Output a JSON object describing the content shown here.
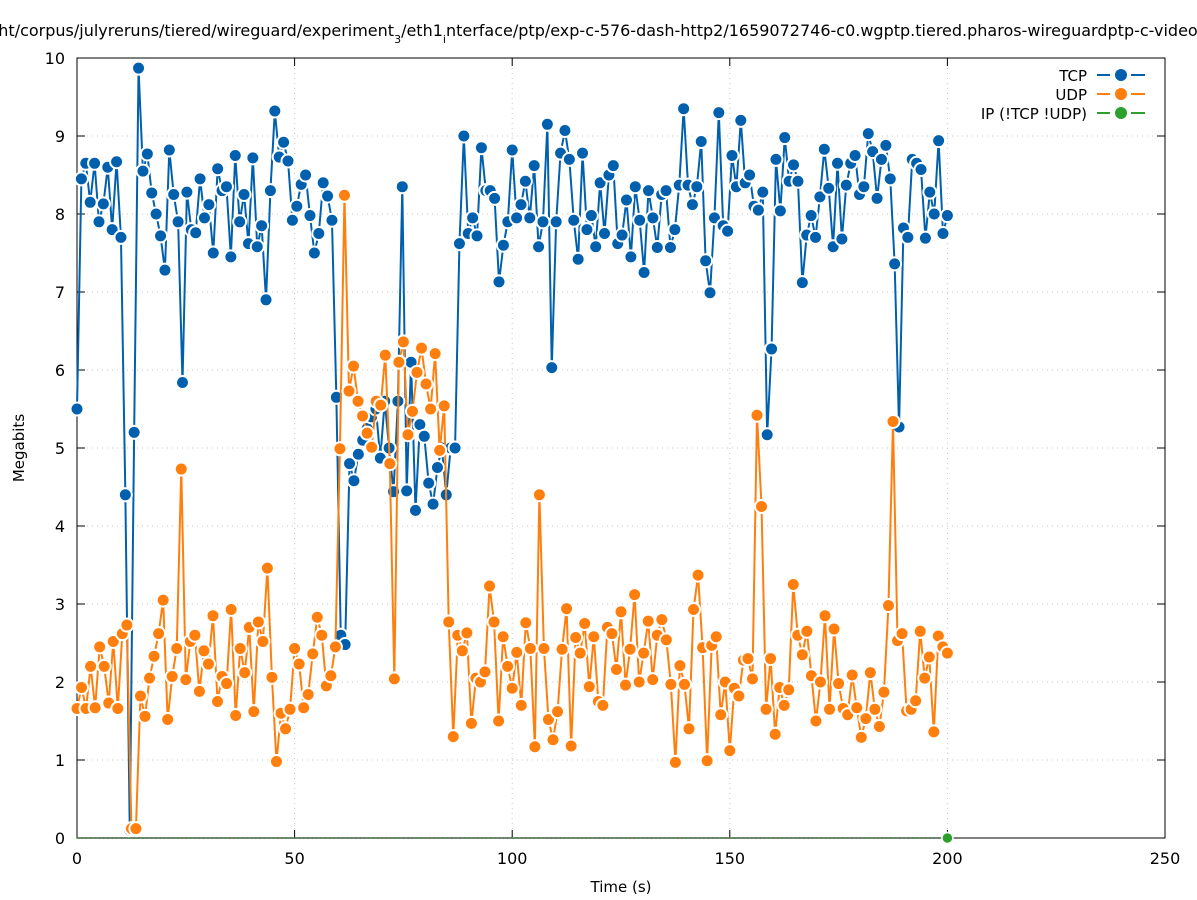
{
  "chart_data": {
    "type": "line",
    "title": {
      "pre": "ht/corpus/julyreruns/tiered/wireguard/experiment",
      "sub1": "3",
      "mid": "/eth1",
      "sub2": "i",
      "post": "nterface/ptp/exp-c-576-dash-http2/1659072746-c0.wgptp.tiered.pharos-wireguardptp-c-video"
    },
    "xlabel": "Time (s)",
    "ylabel": "Megabits",
    "xlim": [
      0,
      250
    ],
    "ylim": [
      0,
      10
    ],
    "xticks": [
      "0",
      "50",
      "100",
      "150",
      "200",
      "250"
    ],
    "yticks": [
      "0",
      "1",
      "2",
      "3",
      "4",
      "5",
      "6",
      "7",
      "8",
      "9",
      "10"
    ],
    "grid": true,
    "legend_position": "top-right",
    "x_start": 0,
    "x_end": 200,
    "series": [
      {
        "name": "TCP",
        "color": "#0060ad",
        "values": [
          5.5,
          8.45,
          8.65,
          8.15,
          8.65,
          7.9,
          8.13,
          8.6,
          7.8,
          8.67,
          7.7,
          4.4,
          0.1,
          5.2,
          9.87,
          8.55,
          8.77,
          8.27,
          8.0,
          7.72,
          7.28,
          8.82,
          8.25,
          7.9,
          5.84,
          8.28,
          7.8,
          7.76,
          8.45,
          7.95,
          8.12,
          7.5,
          8.58,
          8.3,
          8.35,
          7.45,
          8.75,
          7.9,
          8.25,
          7.62,
          8.72,
          7.58,
          7.85,
          6.9,
          8.3,
          9.32,
          8.73,
          8.92,
          8.68,
          7.92,
          8.1,
          8.38,
          8.5,
          7.98,
          7.5,
          7.75,
          8.4,
          8.23,
          7.92,
          5.65,
          2.6,
          2.48,
          4.8,
          4.58,
          4.92,
          5.1,
          5.25,
          5.4,
          5.5,
          4.87,
          5.6,
          5.0,
          4.44,
          5.6,
          8.35,
          4.45,
          6.1,
          4.2,
          5.3,
          5.15,
          4.55,
          4.28,
          4.75,
          5.0,
          4.4,
          5.0,
          5.0,
          7.62,
          9.0,
          7.75,
          7.95,
          7.72,
          8.85,
          8.3,
          8.3,
          8.2,
          7.13,
          7.6,
          7.9,
          8.82,
          7.95,
          8.12,
          8.42,
          7.95,
          8.62,
          7.58,
          7.9,
          9.15,
          6.03,
          7.9,
          8.78,
          9.07,
          8.7,
          7.92,
          7.42,
          8.78,
          7.8,
          7.98,
          7.58,
          8.4,
          7.75,
          8.5,
          8.62,
          7.62,
          7.73,
          8.18,
          7.45,
          8.35,
          7.92,
          7.25,
          8.3,
          7.95,
          7.57,
          8.25,
          8.3,
          7.57,
          7.8,
          8.37,
          9.35,
          8.37,
          8.12,
          8.35,
          8.93,
          7.4,
          6.99,
          7.95,
          9.3,
          7.85,
          7.78,
          8.75,
          8.35,
          9.2,
          8.4,
          8.5,
          8.1,
          8.05,
          8.28,
          5.17,
          6.27,
          8.7,
          8.04,
          8.98,
          8.42,
          8.63,
          8.42,
          7.12,
          7.73,
          7.98,
          7.7,
          8.22,
          8.83,
          8.33,
          7.58,
          8.65,
          7.68,
          8.37,
          8.65,
          8.75,
          8.25,
          8.35,
          9.03,
          8.8,
          8.2,
          8.7,
          8.88,
          8.45,
          7.36,
          5.27,
          7.82,
          7.7,
          8.7,
          8.65,
          8.57,
          7.69,
          8.28,
          8.0,
          8.94,
          7.75,
          7.98
        ]
      },
      {
        "name": "UDP",
        "color": "#ff7f0e",
        "values": [
          1.66,
          1.93,
          1.66,
          2.2,
          1.67,
          2.45,
          2.2,
          1.73,
          2.52,
          1.66,
          2.62,
          2.73,
          0.12,
          0.12,
          1.82,
          1.56,
          2.05,
          2.33,
          2.62,
          3.05,
          1.52,
          2.07,
          2.43,
          4.73,
          2.03,
          2.52,
          2.6,
          1.88,
          2.4,
          2.23,
          2.85,
          1.75,
          2.07,
          1.98,
          2.93,
          1.57,
          2.43,
          2.12,
          2.7,
          1.62,
          2.77,
          2.52,
          3.46,
          2.06,
          0.98,
          1.6,
          1.4,
          1.65,
          2.43,
          2.23,
          1.67,
          1.84,
          2.36,
          2.83,
          2.6,
          1.95,
          2.08,
          2.45,
          4.99,
          8.24,
          5.73,
          6.05,
          5.6,
          5.41,
          5.19,
          5.01,
          5.6,
          5.55,
          6.19,
          4.8,
          2.04,
          6.1,
          6.36,
          5.17,
          5.47,
          5.97,
          6.28,
          5.82,
          5.5,
          6.21,
          4.97,
          5.54,
          2.77,
          1.3,
          2.6,
          2.4,
          2.63,
          1.47,
          2.05,
          2.0,
          2.13,
          3.23,
          2.77,
          1.5,
          2.58,
          2.2,
          1.92,
          2.38,
          1.7,
          2.76,
          2.43,
          1.17,
          4.4,
          2.43,
          1.52,
          1.26,
          1.62,
          2.42,
          2.94,
          1.18,
          2.57,
          2.37,
          2.75,
          1.94,
          2.58,
          1.75,
          1.7,
          2.7,
          2.62,
          2.16,
          2.9,
          1.96,
          2.42,
          3.12,
          2.0,
          2.37,
          2.78,
          2.03,
          2.6,
          2.8,
          2.54,
          1.97,
          0.97,
          2.21,
          1.97,
          1.4,
          2.93,
          3.37,
          2.44,
          0.99,
          2.47,
          2.58,
          1.58,
          2.0,
          1.12,
          1.92,
          1.82,
          2.28,
          2.3,
          2.04,
          5.42,
          4.25,
          1.65,
          2.3,
          1.33,
          1.93,
          1.7,
          1.9,
          3.25,
          2.6,
          2.35,
          2.65,
          2.08,
          1.5,
          2.0,
          2.85,
          1.65,
          2.68,
          1.98,
          1.66,
          1.58,
          2.09,
          1.67,
          1.29,
          1.53,
          2.12,
          1.65,
          1.43,
          1.87,
          2.98,
          5.34,
          2.53,
          2.62,
          1.63,
          1.65,
          1.76,
          2.65,
          2.05,
          2.32,
          1.36,
          2.59,
          2.45,
          2.37
        ]
      },
      {
        "name": "IP (!TCP  !UDP)",
        "color": "#2ca02c",
        "values": [
          0
        ]
      }
    ]
  }
}
